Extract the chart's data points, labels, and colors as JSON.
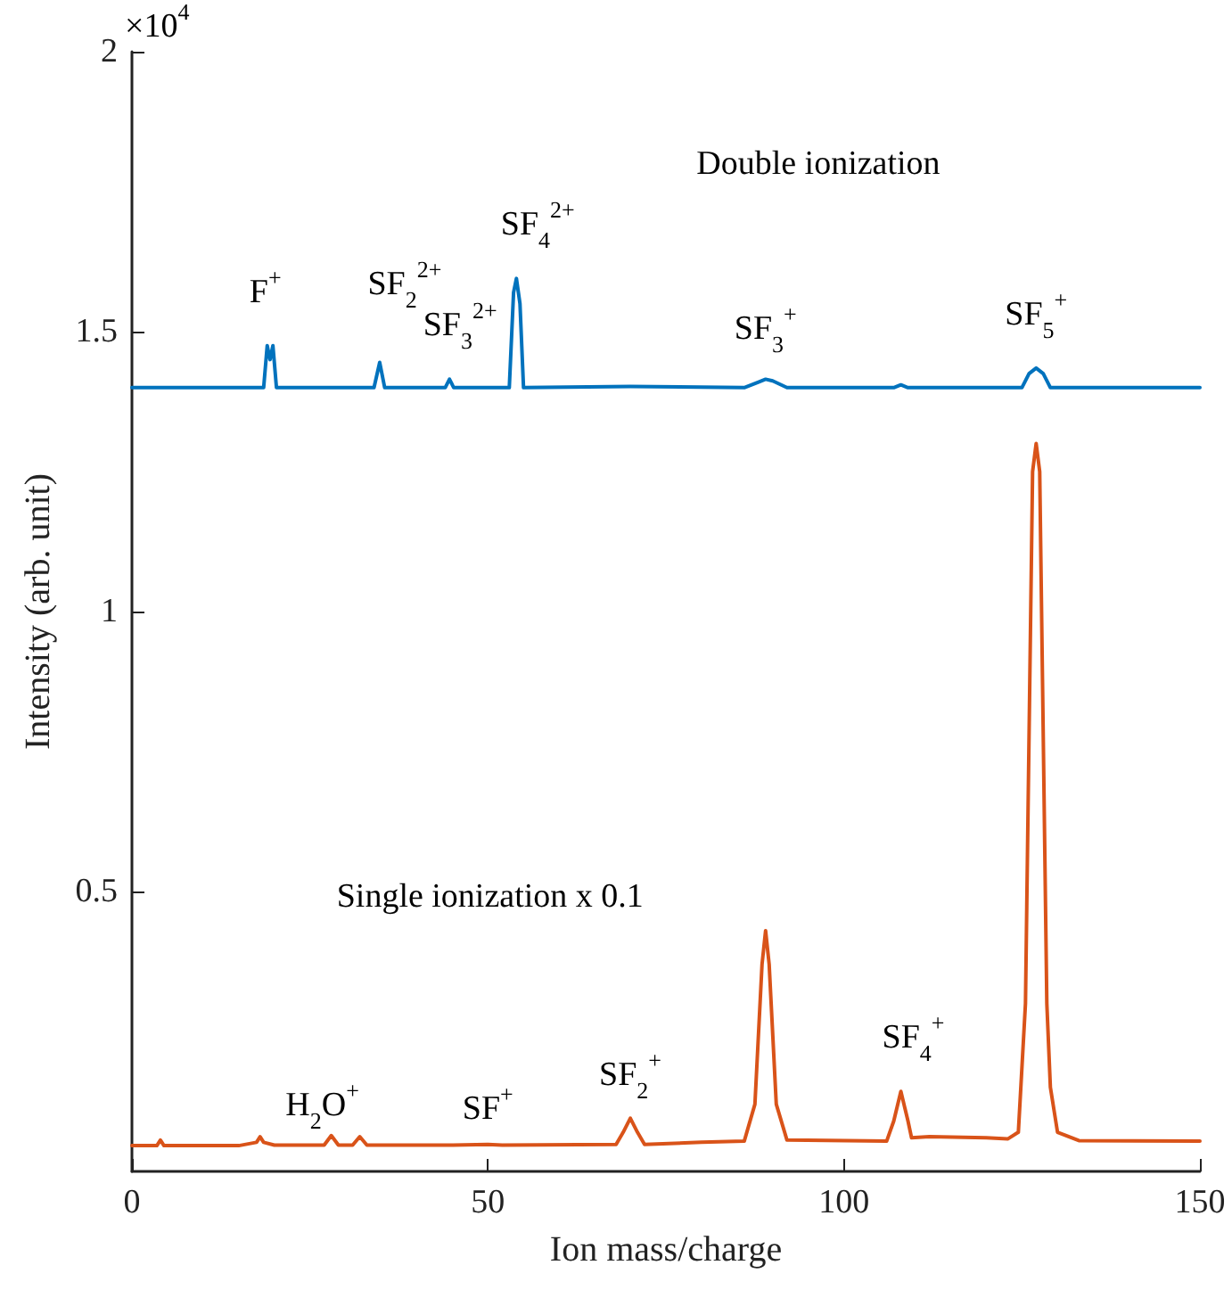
{
  "chart_data": {
    "type": "line",
    "xlabel": "Ion mass/charge",
    "ylabel": "Intensity (arb. unit)",
    "xlim": [
      0,
      150
    ],
    "xticks": [
      0,
      50,
      100,
      150
    ],
    "ylim": [
      0,
      2
    ],
    "yticks": [
      0.5,
      1,
      1.5,
      2
    ],
    "grid": false,
    "marker": "none",
    "line_style": "solid",
    "series": [
      {
        "color": "#0072bd",
        "x": [
          0,
          17,
          18.5,
          19,
          19.4,
          19.8,
          20.3,
          34,
          34.8,
          35.5,
          44,
          44.6,
          45.2,
          53,
          53.6,
          54,
          54.5,
          55,
          70,
          86,
          88,
          89,
          90,
          92,
          107,
          108,
          109,
          125,
          126,
          127,
          128,
          129,
          150
        ],
        "values": [
          1.4,
          1.4,
          1.4,
          1.475,
          1.45,
          1.475,
          1.4,
          1.4,
          1.445,
          1.4,
          1.4,
          1.415,
          1.4,
          1.4,
          1.57,
          1.595,
          1.55,
          1.4,
          1.402,
          1.4,
          1.41,
          1.415,
          1.412,
          1.4,
          1.4,
          1.405,
          1.4,
          1.4,
          1.425,
          1.435,
          1.425,
          1.4,
          1.4
        ]
      },
      {
        "color": "#d95319",
        "x": [
          0,
          3.5,
          4,
          4.5,
          15,
          17.5,
          18,
          18.5,
          20,
          27,
          28,
          29,
          31,
          32,
          33,
          45,
          50,
          52,
          68,
          69,
          70,
          71,
          72,
          80,
          86,
          87.5,
          88.5,
          89,
          89.5,
          90.5,
          92,
          106,
          107,
          108,
          109,
          109.5,
          112,
          120,
          123,
          124.5,
          125.5,
          126.5,
          127,
          127.5,
          128.5,
          129,
          130,
          133,
          150
        ],
        "values": [
          0.046,
          0.046,
          0.056,
          0.046,
          0.046,
          0.052,
          0.062,
          0.052,
          0.047,
          0.047,
          0.064,
          0.047,
          0.047,
          0.062,
          0.047,
          0.047,
          0.048,
          0.047,
          0.048,
          0.07,
          0.095,
          0.07,
          0.048,
          0.052,
          0.054,
          0.12,
          0.37,
          0.43,
          0.37,
          0.12,
          0.056,
          0.054,
          0.09,
          0.143,
          0.09,
          0.06,
          0.062,
          0.06,
          0.058,
          0.07,
          0.3,
          1.25,
          1.3,
          1.25,
          0.3,
          0.15,
          0.07,
          0.055,
          0.054
        ]
      }
    ],
    "annotations": [
      "×10$^{4}$",
      "Double ionization",
      "Single ionization x 0.1",
      {
        "text": "F$^{+}$",
        "x": 19,
        "y": 1.475
      },
      {
        "text": "SF$_{2}$$^{2+}$",
        "x": 34.8,
        "y": 1.445
      },
      {
        "text": "SF$_{3}$$^{2+}$",
        "x": 44.6,
        "y": 1.415
      },
      {
        "text": "SF$_{4}$$^{2+}$",
        "x": 54,
        "y": 1.595
      },
      {
        "text": "SF$_{3}$$^{+}$",
        "x": 89,
        "y": 1.415
      },
      {
        "text": "SF$_{5}$$^{+}$",
        "x": 127,
        "y": 1.435
      },
      {
        "text": "H$_{2}$O$^{+}$",
        "x": 28,
        "y": 0.064
      },
      {
        "text": "SF$^{+}$",
        "x": 50,
        "y": 0.048
      },
      {
        "text": "SF$_{2}$$^{+}$",
        "x": 70,
        "y": 0.095
      },
      {
        "text": "SF$_{4}$$^{+}$",
        "x": 108,
        "y": 0.143
      }
    ]
  }
}
